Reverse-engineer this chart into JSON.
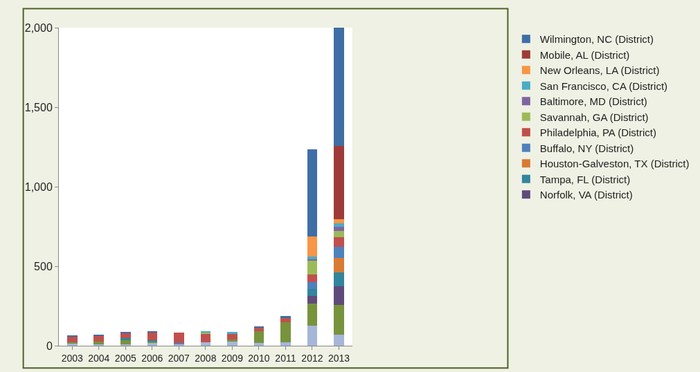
{
  "chart_data": {
    "type": "bar",
    "stacked": true,
    "categories": [
      "2003",
      "2004",
      "2005",
      "2006",
      "2007",
      "2008",
      "2009",
      "2010",
      "2011",
      "2012",
      "2013"
    ],
    "series": [
      {
        "color": "#a5b6d9",
        "values": [
          12,
          10,
          10,
          19,
          12,
          23,
          28,
          17,
          20,
          126,
          68
        ]
      },
      {
        "color": "#77933c",
        "values": [
          10,
          15,
          29,
          6,
          null,
          null,
          12,
          73,
          128,
          141,
          189
        ]
      },
      {
        "name": "Norfolk, VA (District)",
        "color": "#604a7b",
        "values": [
          null,
          null,
          null,
          null,
          null,
          null,
          null,
          null,
          null,
          45,
          116
        ]
      },
      {
        "name": "Tampa, FL (District)",
        "color": "#31859c",
        "values": [
          null,
          null,
          7,
          11,
          null,
          null,
          null,
          null,
          null,
          44,
          90
        ]
      },
      {
        "name": "Houston-Galveston, TX (District)",
        "color": "#d97a33",
        "values": [
          null,
          null,
          null,
          null,
          null,
          null,
          null,
          null,
          null,
          null,
          89
        ]
      },
      {
        "name": "Buffalo, NY (District)",
        "color": "#4f81bd",
        "values": [
          null,
          null,
          null,
          null,
          5,
          null,
          null,
          null,
          null,
          44,
          71
        ]
      },
      {
        "name": "Philadelphia, PA (District)",
        "color": "#c0504d",
        "values": [
          36,
          36,
          33,
          50,
          64,
          49,
          36,
          27,
          30,
          49,
          61
        ]
      },
      {
        "name": "Savannah, GA (District)",
        "color": "#9bbb59",
        "values": [
          null,
          null,
          null,
          null,
          null,
          12,
          null,
          null,
          null,
          84,
          38
        ]
      },
      {
        "name": "Baltimore, MD (District)",
        "color": "#8064a2",
        "values": [
          null,
          null,
          null,
          null,
          null,
          null,
          null,
          null,
          null,
          12,
          24
        ]
      },
      {
        "name": "San Francisco, CA (District)",
        "color": "#4bacc6",
        "values": [
          null,
          null,
          null,
          null,
          null,
          9,
          9,
          null,
          null,
          14,
          24
        ]
      },
      {
        "name": "New Orleans, LA (District)",
        "color": "#f79646",
        "values": [
          null,
          null,
          null,
          null,
          null,
          null,
          null,
          null,
          null,
          129,
          24
        ]
      },
      {
        "name": "Mobile, AL (District)",
        "color": "#9e3b38",
        "values": [
          null,
          null,
          null,
          null,
          null,
          null,
          null,
          null,
          null,
          null,
          462
        ]
      },
      {
        "name": "Wilmington, NC (District)",
        "color": "#3f6ea6",
        "values": [
          7,
          6,
          4,
          7,
          null,
          null,
          null,
          5,
          7,
          545,
          744
        ]
      }
    ],
    "ylim": [
      0,
      2000
    ],
    "yticks": [
      0,
      {
        "value": 500,
        "label": "500"
      },
      {
        "value": 1000,
        "label": "1,000"
      },
      {
        "value": 1500,
        "label": "1,500"
      },
      {
        "value": 2000,
        "label": "2,000"
      }
    ],
    "grid": false,
    "legend": "right"
  }
}
